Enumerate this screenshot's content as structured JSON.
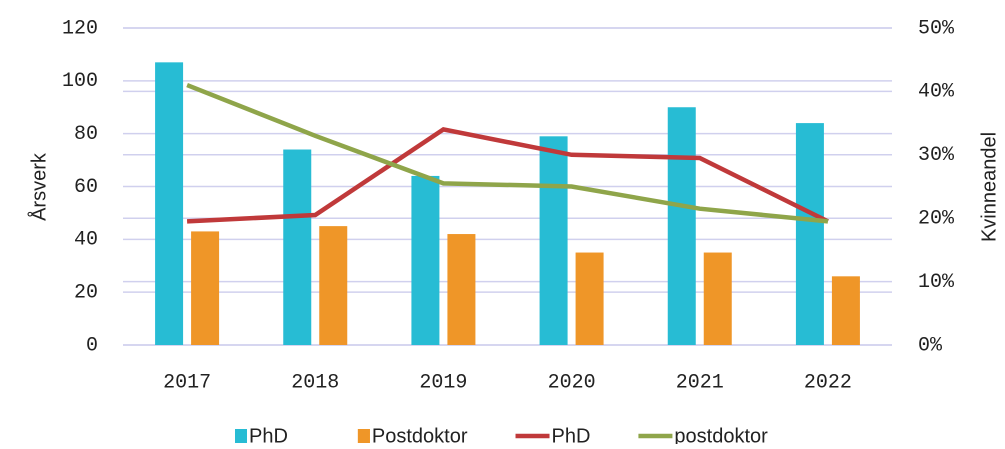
{
  "chart_data": {
    "type": "bar_line",
    "categories": [
      "2017",
      "2018",
      "2019",
      "2020",
      "2021",
      "2022"
    ],
    "series": [
      {
        "name": "PhD",
        "type": "bar",
        "color": "#27bcd4",
        "values": [
          107,
          74,
          64,
          79,
          90,
          84
        ]
      },
      {
        "name": "Postdoktor",
        "type": "bar",
        "color": "#ef9628",
        "values": [
          43,
          45,
          42,
          35,
          35,
          26
        ]
      },
      {
        "name": "PhD",
        "type": "line",
        "axis": "y2",
        "color": "#c0393a",
        "values": [
          19.5,
          20.5,
          34,
          30,
          29.5,
          19.5
        ]
      },
      {
        "name": "postdoktor",
        "type": "line",
        "axis": "y2",
        "color": "#8fa54a",
        "values": [
          41,
          33,
          25.5,
          25,
          21.5,
          19.5
        ]
      }
    ],
    "ylabel": "Årsverk",
    "y2label": "Kvinneandel",
    "ylim": [
      0,
      120
    ],
    "yticks": [
      0,
      20,
      40,
      60,
      80,
      100,
      120
    ],
    "y2lim": [
      0,
      50
    ],
    "y2ticks": [
      {
        "value": 0,
        "label": "0%"
      },
      {
        "value": 10,
        "label": "10%"
      },
      {
        "value": 20,
        "label": "20%"
      },
      {
        "value": 30,
        "label": "30%"
      },
      {
        "value": 40,
        "label": "40%"
      },
      {
        "value": 50,
        "label": "50%"
      }
    ],
    "grid": true
  }
}
